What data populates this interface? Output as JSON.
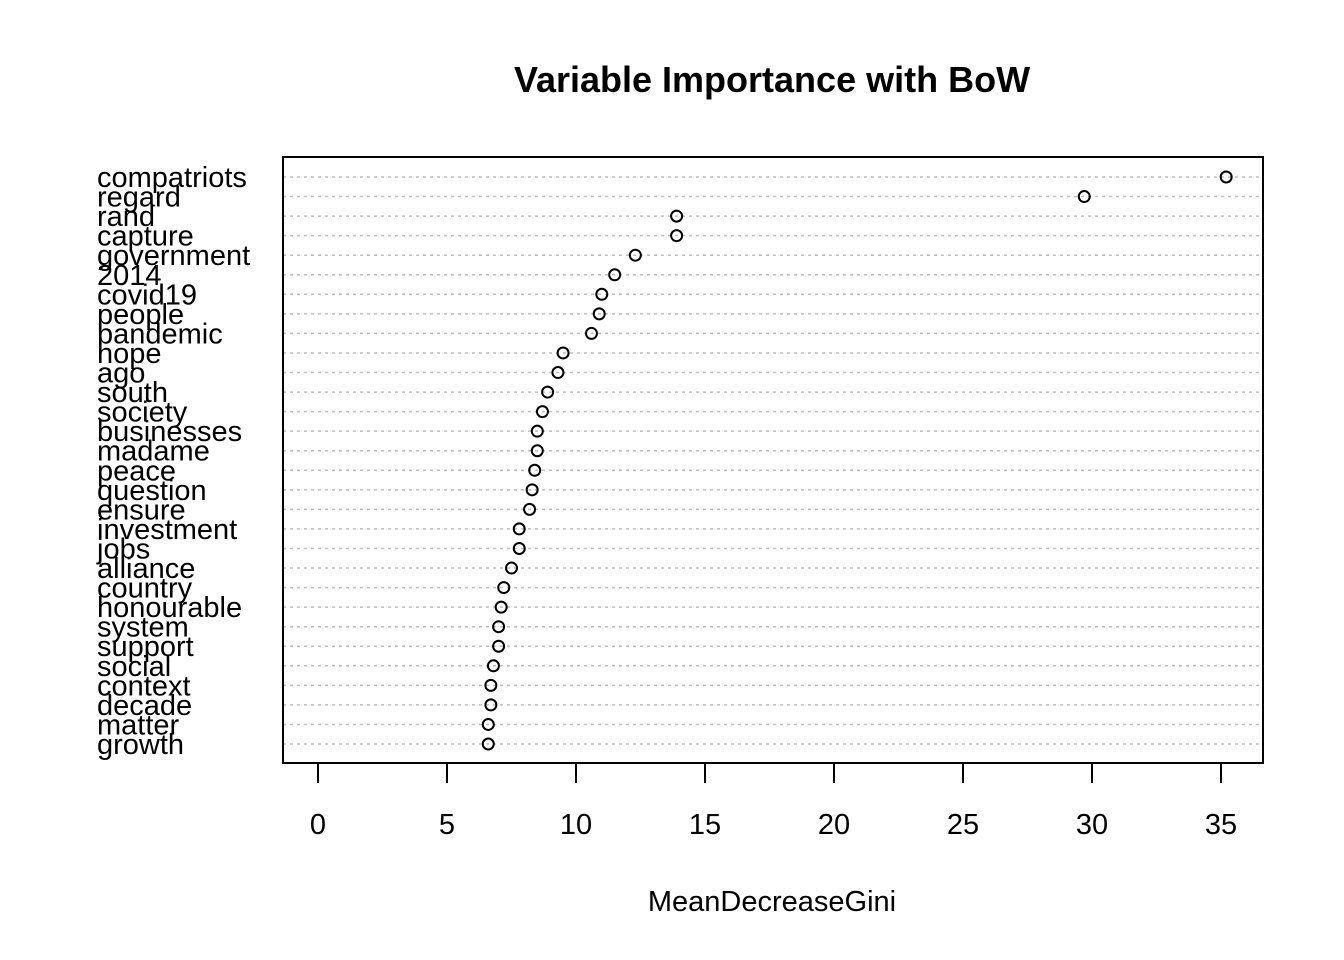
{
  "chart_data": {
    "type": "dotchart",
    "title": "Variable Importance with BoW",
    "xlabel": "MeanDecreaseGini",
    "ylabel": "",
    "xlim": [
      0,
      35
    ],
    "xticks": [
      0,
      5,
      10,
      15,
      20,
      25,
      30,
      35
    ],
    "grid": "horizontal dotted guide lines",
    "categories": [
      "compatriots",
      "regard",
      "rand",
      "capture",
      "government",
      "2014",
      "covid19",
      "people",
      "pandemic",
      "hope",
      "ago",
      "south",
      "society",
      "businesses",
      "madame",
      "peace",
      "question",
      "ensure",
      "investment",
      "jobs",
      "alliance",
      "country",
      "honourable",
      "system",
      "support",
      "social",
      "context",
      "decade",
      "matter",
      "growth"
    ],
    "values": [
      35.2,
      29.7,
      13.9,
      13.9,
      12.3,
      11.5,
      11.0,
      10.9,
      10.6,
      9.5,
      9.3,
      8.9,
      8.7,
      8.5,
      8.5,
      8.4,
      8.3,
      8.2,
      7.8,
      7.8,
      7.5,
      7.2,
      7.1,
      7.0,
      7.0,
      6.8,
      6.7,
      6.7,
      6.6,
      6.6
    ]
  }
}
